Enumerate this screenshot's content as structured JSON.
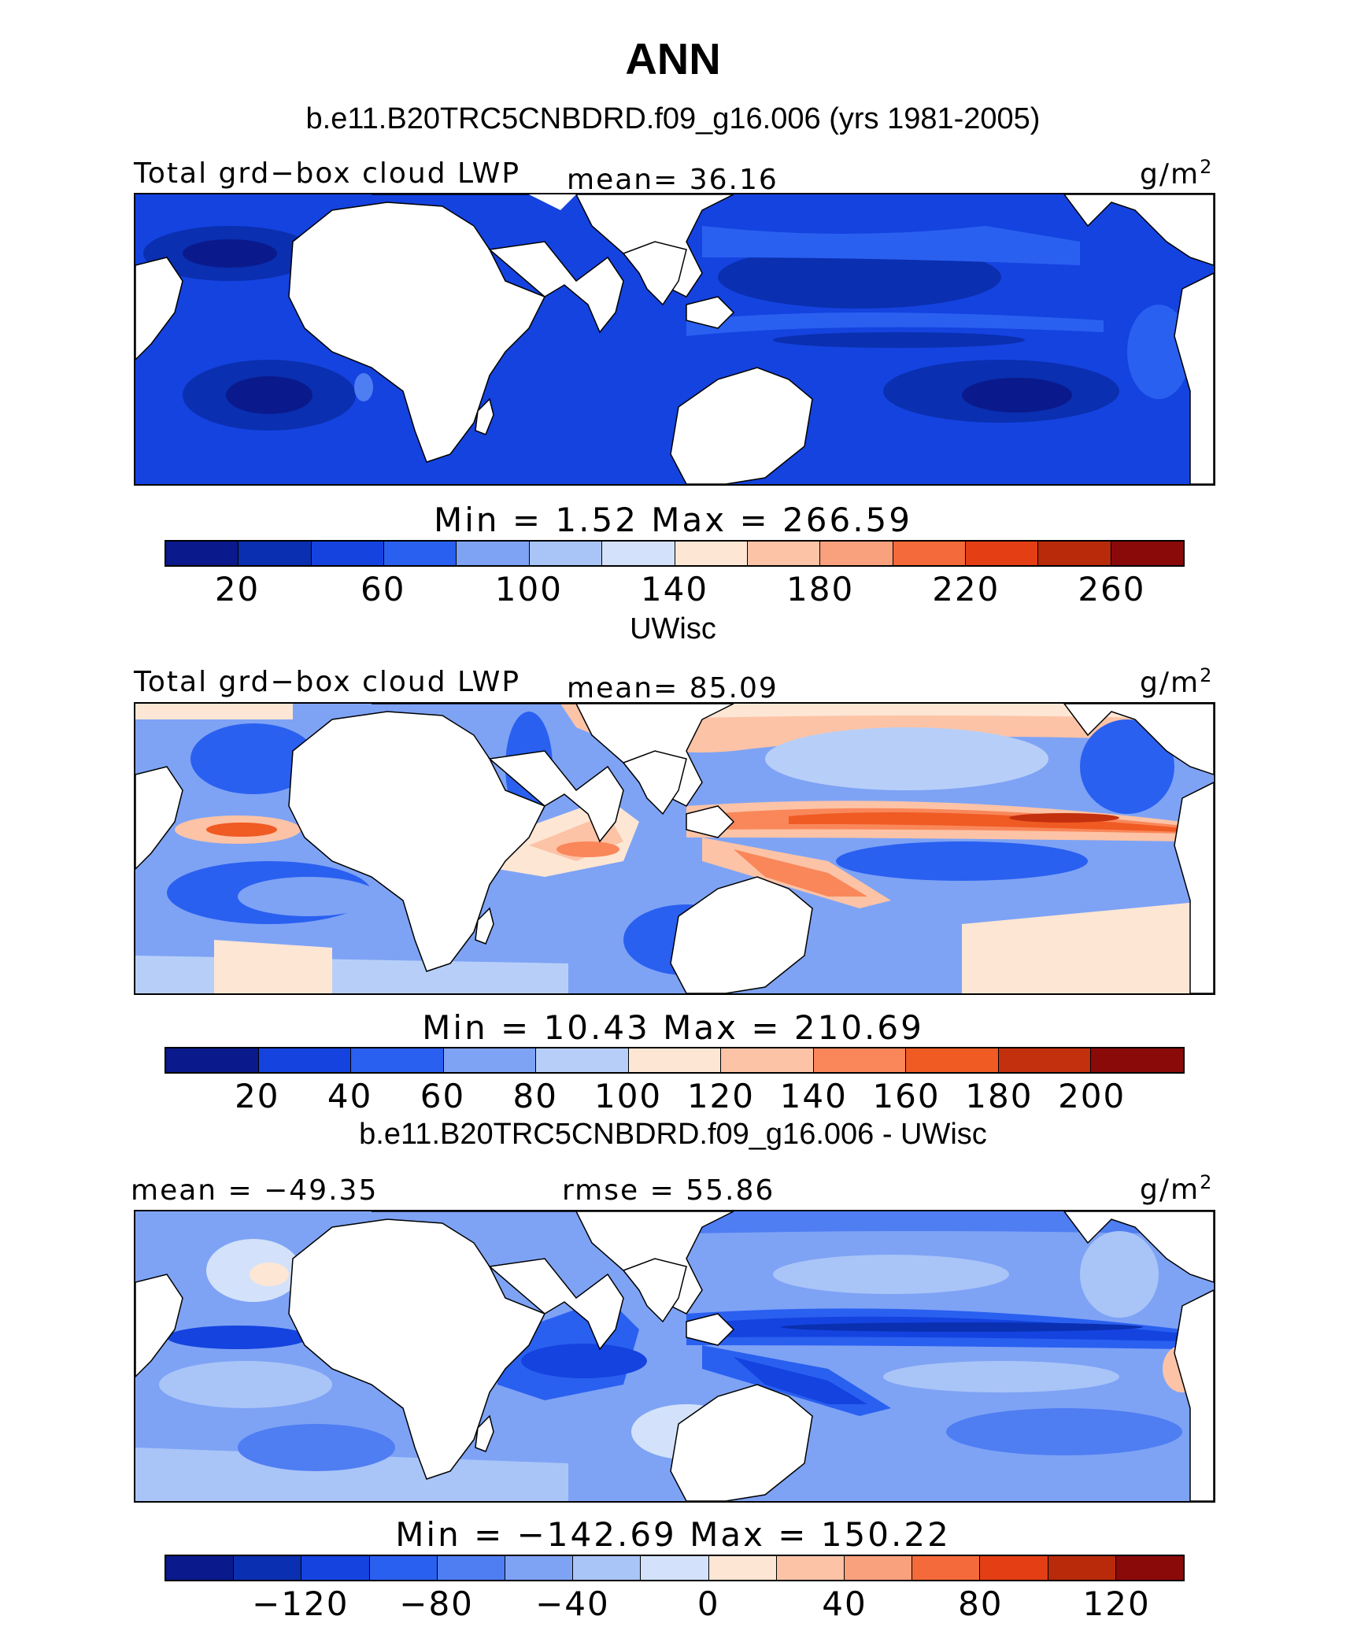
{
  "header": {
    "title": "ANN",
    "subtitle": "b.e11.B20TRC5CNBDRD.f09_g16.006 (yrs 1981-2005)"
  },
  "panels": [
    {
      "heading": "",
      "left_label": "Total grd−box cloud LWP",
      "center_label": "mean=  36.16",
      "units": "g/m",
      "units_sup": "2",
      "minmax": "Min  =    1.52  Max  =  266.59",
      "colorbar_colors": [
        "#0a1a8c",
        "#0a2fb0",
        "#1443e0",
        "#2a60f0",
        "#7ea3f5",
        "#a9c4f7",
        "#d3e2fa",
        "#fde6d4",
        "#fcc3a6",
        "#f9a07d",
        "#f56a3a",
        "#e33e14",
        "#b92a0a",
        "#8a0a0a"
      ],
      "ticks": [
        "20",
        "60",
        "100",
        "140",
        "180",
        "220",
        "260"
      ],
      "field": "model"
    },
    {
      "heading": "UWisc",
      "left_label": "Total grd−box cloud LWP",
      "center_label": "mean=  85.09",
      "units": "g/m",
      "units_sup": "2",
      "minmax": "Min  =   10.43  Max  =  210.69",
      "colorbar_colors": [
        "#0a1a8c",
        "#1443e0",
        "#2a60f0",
        "#7ea3f5",
        "#b7cff8",
        "#fde6d4",
        "#fcc3a6",
        "#f9875a",
        "#f05a23",
        "#c3300d",
        "#8a0a0a"
      ],
      "ticks": [
        "20",
        "40",
        "60",
        "80",
        "100",
        "120",
        "140",
        "160",
        "180",
        "200"
      ],
      "field": "obs"
    },
    {
      "heading": "b.e11.B20TRC5CNBDRD.f09_g16.006 - UWisc",
      "left_label": "mean = −49.35",
      "center_label": "rmse =   55.86",
      "units": "g/m",
      "units_sup": "2",
      "minmax": "Min  = −142.69  Max  =  150.22",
      "colorbar_colors": [
        "#0a1a8c",
        "#0a2fb0",
        "#1443e0",
        "#2a60f0",
        "#4f7df2",
        "#7ea3f5",
        "#a9c4f7",
        "#d3e2fa",
        "#fde6d4",
        "#fcc3a6",
        "#f9a07d",
        "#f56a3a",
        "#e33e14",
        "#b92a0a",
        "#8a0a0a"
      ],
      "ticks": [
        "−120",
        "−80",
        "−40",
        "0",
        "40",
        "80",
        "120"
      ],
      "field": "diff"
    }
  ]
}
